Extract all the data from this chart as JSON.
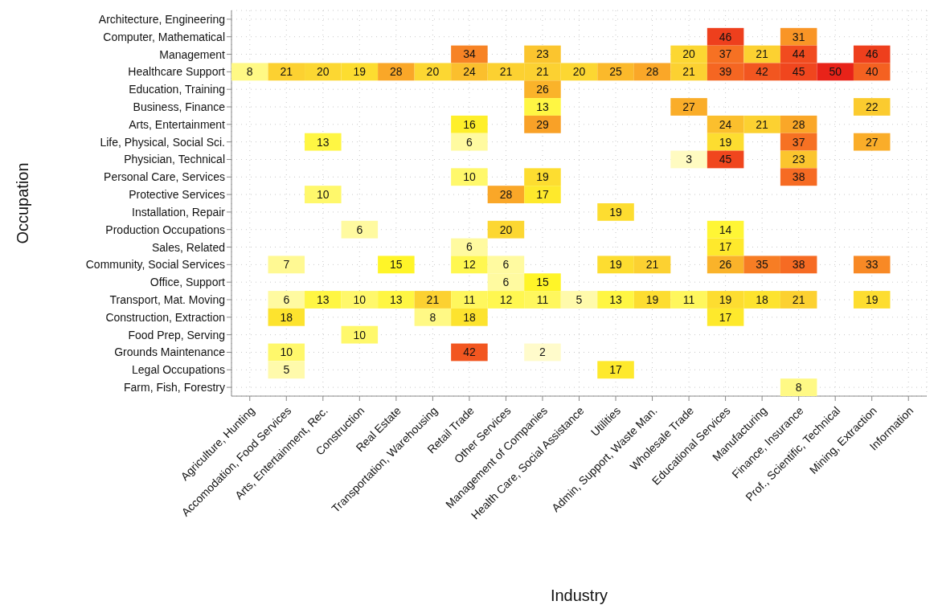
{
  "chart_data": {
    "type": "heatmap",
    "xlabel": "Industry",
    "ylabel": "Occupation",
    "grid": true,
    "data_labels": true,
    "categories": [
      "Agriculture, Hunting",
      "Accomodation, Food Services",
      "Arts, Entertainment, Rec.",
      "Construction",
      "Real Estate",
      "Transportation, Warehousing",
      "Retail Trade",
      "Other Services",
      "Management of Companies",
      "Health Care, Social Assistance",
      "Utilities",
      "Admin, Support, Waste Man.",
      "Wholesale Trade",
      "Educational Services",
      "Manufacturing",
      "Finance, Insurance",
      "Prof., Scientific, Technical",
      "Mining, Extraction",
      "Information"
    ],
    "y_categories": [
      "Architecture, Engineering",
      "Computer, Mathematical",
      "Management",
      "Healthcare Support",
      "Education, Training",
      "Business, Finance",
      "Arts, Entertainment",
      "Life, Physical, Social Sci.",
      "Physician, Technical",
      "Personal Care, Services",
      "Protective Services",
      "Installation, Repair",
      "Production Occupations",
      "Sales, Related",
      "Community, Social Services",
      "Office, Support",
      "Transport, Mat. Moving",
      "Construction, Extraction",
      "Food Prep, Serving",
      "Grounds Maintenance",
      "Legal Occupations",
      "Farm, Fish, Forestry"
    ],
    "cells": [
      [
        null,
        null,
        null,
        null,
        null,
        null,
        null,
        null,
        null,
        null,
        null,
        null,
        null,
        null,
        null,
        null,
        null,
        null,
        null
      ],
      [
        null,
        null,
        null,
        null,
        null,
        null,
        null,
        null,
        null,
        null,
        null,
        null,
        null,
        46,
        null,
        31,
        null,
        null,
        null
      ],
      [
        null,
        null,
        null,
        null,
        null,
        null,
        34,
        null,
        23,
        null,
        null,
        null,
        20,
        37,
        21,
        44,
        null,
        46,
        null
      ],
      [
        8,
        21,
        20,
        19,
        28,
        20,
        24,
        21,
        21,
        20,
        25,
        28,
        21,
        39,
        42,
        45,
        50,
        40,
        null
      ],
      [
        null,
        null,
        null,
        null,
        null,
        null,
        null,
        null,
        26,
        null,
        null,
        null,
        null,
        null,
        null,
        null,
        null,
        null,
        null
      ],
      [
        null,
        null,
        null,
        null,
        null,
        null,
        null,
        null,
        13,
        null,
        null,
        null,
        27,
        null,
        null,
        null,
        null,
        22,
        null
      ],
      [
        null,
        null,
        null,
        null,
        null,
        null,
        16,
        null,
        29,
        null,
        null,
        null,
        null,
        24,
        21,
        28,
        null,
        null,
        null
      ],
      [
        null,
        null,
        13,
        null,
        null,
        null,
        6,
        null,
        null,
        null,
        null,
        null,
        null,
        19,
        null,
        37,
        null,
        27,
        null
      ],
      [
        null,
        null,
        null,
        null,
        null,
        null,
        null,
        null,
        null,
        null,
        null,
        null,
        3,
        45,
        null,
        23,
        null,
        null,
        null
      ],
      [
        null,
        null,
        null,
        null,
        null,
        null,
        10,
        null,
        19,
        null,
        null,
        null,
        null,
        null,
        null,
        38,
        null,
        null,
        null
      ],
      [
        null,
        null,
        10,
        null,
        null,
        null,
        null,
        28,
        17,
        null,
        null,
        null,
        null,
        null,
        null,
        null,
        null,
        null,
        null
      ],
      [
        null,
        null,
        null,
        null,
        null,
        null,
        null,
        null,
        null,
        null,
        19,
        null,
        null,
        null,
        null,
        null,
        null,
        null,
        null
      ],
      [
        null,
        null,
        null,
        6,
        null,
        null,
        null,
        20,
        null,
        null,
        null,
        null,
        null,
        14,
        null,
        null,
        null,
        null,
        null
      ],
      [
        null,
        null,
        null,
        null,
        null,
        null,
        6,
        null,
        null,
        null,
        null,
        null,
        null,
        17,
        null,
        null,
        null,
        null,
        null
      ],
      [
        null,
        7,
        null,
        null,
        15,
        null,
        12,
        6,
        null,
        null,
        19,
        21,
        null,
        26,
        35,
        38,
        null,
        33,
        null
      ],
      [
        null,
        null,
        null,
        null,
        null,
        null,
        null,
        6,
        15,
        null,
        null,
        null,
        null,
        null,
        null,
        null,
        null,
        null,
        null
      ],
      [
        null,
        6,
        13,
        10,
        13,
        21,
        11,
        12,
        11,
        5,
        13,
        19,
        11,
        19,
        18,
        21,
        null,
        19,
        null
      ],
      [
        null,
        18,
        null,
        null,
        null,
        8,
        18,
        null,
        null,
        null,
        null,
        null,
        null,
        17,
        null,
        null,
        null,
        null,
        null
      ],
      [
        null,
        null,
        null,
        10,
        null,
        null,
        null,
        null,
        null,
        null,
        null,
        null,
        null,
        null,
        null,
        null,
        null,
        null,
        null
      ],
      [
        null,
        10,
        null,
        null,
        null,
        null,
        42,
        null,
        2,
        null,
        null,
        null,
        null,
        null,
        null,
        null,
        null,
        null,
        null
      ],
      [
        null,
        5,
        null,
        null,
        null,
        null,
        null,
        null,
        null,
        null,
        17,
        null,
        null,
        null,
        null,
        null,
        null,
        null,
        null
      ],
      [
        null,
        null,
        null,
        null,
        null,
        null,
        null,
        null,
        null,
        null,
        null,
        null,
        null,
        null,
        null,
        8,
        null,
        null,
        null
      ]
    ]
  }
}
